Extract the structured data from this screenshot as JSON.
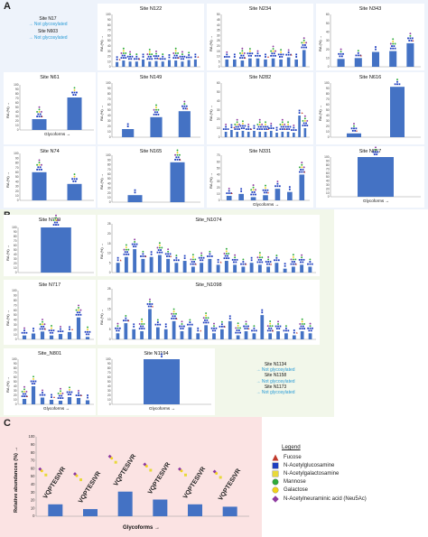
{
  "sections": {
    "a_label": "A",
    "b_label": "B",
    "c_label": "C"
  },
  "colors": {
    "bar": "#4472c4",
    "fucose": "#c0392b",
    "glcnac": "#1f3fbf",
    "galnac": "#e8d93a",
    "mannose": "#2eaa3a",
    "galactose": "#f2d21b",
    "neu5ac": "#8e3aa0",
    "not_glyco": "#2a9bd6"
  },
  "axis_text": {
    "ra": "RA (%) →",
    "glycoforms": "Glycoforms →",
    "rel_abundance": "Relative abundances (%) →"
  },
  "notes": {
    "a1": {
      "site1": "Site N17",
      "ng1": "→ Not glycosylated",
      "site2": "Site N603",
      "ng2": "→ Not glycosylated"
    },
    "b1": {
      "site1": "Site N1134",
      "ng1": "→ Not glycosylated",
      "site2": "Site N1158",
      "ng2": "→ Not glycosylated",
      "site3": "Site N1173",
      "ng3": "→ Not glycosylated"
    }
  },
  "legend": {
    "title": "Legend",
    "items": [
      {
        "label": "Fucose",
        "shape": "triangle",
        "color": "#c0392b"
      },
      {
        "label": "N-Acetylglucosamine",
        "shape": "square",
        "color": "#1f3fbf"
      },
      {
        "label": "N-Acetylgalactosamine",
        "shape": "square",
        "color": "#e8d93a"
      },
      {
        "label": "Mannose",
        "shape": "circle",
        "color": "#2eaa3a"
      },
      {
        "label": "Galactose",
        "shape": "circle",
        "color": "#f2d21b"
      },
      {
        "label": "N-Acetylneuraminic acid (Neu5Ac)",
        "shape": "diamond",
        "color": "#8e3aa0"
      }
    ]
  },
  "chart_data": [
    {
      "type": "bar",
      "title": "Site N122",
      "ylabel": "RA (%) →",
      "xlabel": "",
      "ylim": [
        0,
        100
      ],
      "yticks": [
        "0",
        "10",
        "20",
        "30",
        "40",
        "50",
        "60",
        "70",
        "80",
        "90",
        "100"
      ],
      "values": [
        9,
        12,
        10,
        10,
        14,
        10,
        11,
        10,
        13,
        12,
        10,
        13,
        14
      ]
    },
    {
      "type": "bar",
      "title": "Site N234",
      "ylabel": "RA (%) →",
      "xlabel": "",
      "ylim": [
        0,
        50
      ],
      "yticks": [
        "0",
        "5",
        "10",
        "15",
        "20",
        "25",
        "30",
        "35",
        "40",
        "45",
        "50"
      ],
      "values": [
        7,
        7,
        6,
        8,
        8,
        7,
        8,
        7,
        9,
        7,
        16
      ]
    },
    {
      "type": "bar",
      "title": "Site N343",
      "ylabel": "RA (%) →",
      "xlabel": "",
      "ylim": [
        0,
        60
      ],
      "yticks": [
        "0",
        "10",
        "20",
        "30",
        "40",
        "50",
        "60"
      ],
      "values": [
        9,
        10,
        17,
        18,
        27
      ]
    },
    {
      "type": "bar",
      "title": "Site N61",
      "ylabel": "RA (%) →",
      "xlabel": "Glycoforms →",
      "ylim": [
        0,
        100
      ],
      "yticks": [
        "0",
        "10",
        "20",
        "30",
        "40",
        "50",
        "60",
        "70",
        "80",
        "90",
        "100"
      ],
      "values": [
        24,
        72
      ]
    },
    {
      "type": "bar",
      "title": "Site N149",
      "ylabel": "RA (%) →",
      "xlabel": "",
      "ylim": [
        0,
        100
      ],
      "yticks": [
        "0",
        "10",
        "20",
        "30",
        "40",
        "50",
        "60",
        "70",
        "80",
        "90",
        "100"
      ],
      "values": [
        15,
        37,
        48
      ]
    },
    {
      "type": "bar",
      "title": "Site N282",
      "ylabel": "RA (%) →",
      "xlabel": "",
      "ylim": [
        0,
        60
      ],
      "yticks": [
        "0",
        "10",
        "20",
        "30",
        "40",
        "50",
        "60"
      ],
      "values": [
        6,
        8,
        6,
        7,
        6,
        7,
        6,
        6,
        7,
        5,
        6,
        6,
        5,
        24,
        10
      ]
    },
    {
      "type": "bar",
      "title": "Site N616",
      "ylabel": "RA (%) →",
      "xlabel": "",
      "ylim": [
        0,
        100
      ],
      "yticks": [
        "0",
        "10",
        "20",
        "30",
        "40",
        "50",
        "60",
        "70",
        "80",
        "90",
        "100"
      ],
      "values": [
        7,
        93
      ]
    },
    {
      "type": "bar",
      "title": "Site N74",
      "ylabel": "RA (%) →",
      "xlabel": "",
      "ylim": [
        0,
        100
      ],
      "yticks": [
        "0",
        "10",
        "20",
        "30",
        "40",
        "50",
        "60",
        "70",
        "80",
        "90",
        "100"
      ],
      "values": [
        60,
        35
      ]
    },
    {
      "type": "bar",
      "title": "Site N165",
      "ylabel": "RA (%) →",
      "xlabel": "",
      "ylim": [
        0,
        100
      ],
      "yticks": [
        "0",
        "10",
        "20",
        "30",
        "40",
        "50",
        "60",
        "70",
        "80",
        "90",
        "100"
      ],
      "values": [
        15,
        85
      ]
    },
    {
      "type": "bar",
      "title": "Site N331",
      "ylabel": "RA (%) →",
      "xlabel": "Glycoforms →",
      "ylim": [
        0,
        70
      ],
      "yticks": [
        "0",
        "10",
        "20",
        "30",
        "40",
        "50",
        "60",
        "70"
      ],
      "values": [
        7,
        10,
        5,
        8,
        18,
        13,
        40
      ]
    },
    {
      "type": "bar",
      "title": "Site N657",
      "ylabel": "",
      "xlabel": "Glycoforms →",
      "ylim": [
        0,
        100
      ],
      "yticks": [
        "0",
        "10",
        "20",
        "30",
        "40",
        "50",
        "60",
        "70",
        "80",
        "90",
        "100"
      ],
      "values": [
        100
      ]
    },
    {
      "type": "bar",
      "title": "Site N709",
      "ylabel": "RA (%) →",
      "xlabel": "",
      "ylim": [
        0,
        100
      ],
      "yticks": [
        "0",
        "10",
        "20",
        "30",
        "40",
        "50",
        "60",
        "70",
        "80",
        "90",
        "100"
      ],
      "values": [
        100
      ]
    },
    {
      "type": "bar",
      "title": "Site_N1074",
      "ylabel": "RA (%) →",
      "xlabel": "",
      "ylim": [
        0,
        25
      ],
      "yticks": [
        "0",
        "5",
        "10",
        "15",
        "20",
        "25"
      ],
      "values": [
        5,
        8,
        12,
        7,
        8,
        9,
        7,
        5,
        6,
        3,
        5,
        7,
        4,
        6,
        4,
        3,
        5,
        4,
        3,
        5,
        2,
        3,
        4,
        3
      ]
    },
    {
      "type": "bar",
      "title": "Site N717",
      "ylabel": "RA (%) →",
      "xlabel": "",
      "ylim": [
        0,
        100
      ],
      "yticks": [
        "0",
        "10",
        "20",
        "30",
        "40",
        "50",
        "60",
        "70",
        "80",
        "90",
        "100"
      ],
      "values": [
        8,
        12,
        16,
        8,
        11,
        15,
        45,
        5
      ]
    },
    {
      "type": "bar",
      "title": "Site_N1098",
      "ylabel": "RA (%) →",
      "xlabel": "",
      "ylim": [
        0,
        25
      ],
      "yticks": [
        "0",
        "5",
        "10",
        "15",
        "20",
        "25"
      ],
      "values": [
        3,
        8,
        5,
        4,
        15,
        6,
        5,
        9,
        4,
        6,
        3,
        7,
        3,
        5,
        9,
        2,
        4,
        3,
        12,
        3,
        4,
        3,
        2,
        4,
        3
      ]
    },
    {
      "type": "bar",
      "title": "Site_N801",
      "ylabel": "RA (%) →",
      "xlabel": "Glycoforms →",
      "ylim": [
        0,
        100
      ],
      "yticks": [
        "0",
        "10",
        "20",
        "30",
        "40",
        "50",
        "60",
        "70",
        "80",
        "90",
        "100"
      ],
      "values": [
        12,
        40,
        15,
        10,
        8,
        16,
        14,
        9
      ]
    },
    {
      "type": "bar",
      "title": "Site N1194",
      "ylabel": "",
      "xlabel": "Glycoforms →",
      "ylim": [
        0,
        100
      ],
      "yticks": [
        "0",
        "10",
        "20",
        "30",
        "40",
        "50",
        "60",
        "70",
        "80",
        "90",
        "100"
      ],
      "values": [
        100
      ]
    },
    {
      "type": "bar",
      "title": "",
      "ylabel": "Relative abundances (%) →",
      "xlabel": "Glycoforms →",
      "ylim": [
        0,
        100
      ],
      "yticks": [
        "0",
        "10",
        "20",
        "30",
        "40",
        "50",
        "60",
        "70",
        "80",
        "90",
        "100"
      ],
      "categories": [
        "VQPTESIVR",
        "VQPTESIVR",
        "VQPTESIVR",
        "VQPTESIVR",
        "VQPTESIVR",
        "VQPTESIVR"
      ],
      "values": [
        15,
        9,
        31,
        21,
        15,
        12
      ]
    }
  ]
}
